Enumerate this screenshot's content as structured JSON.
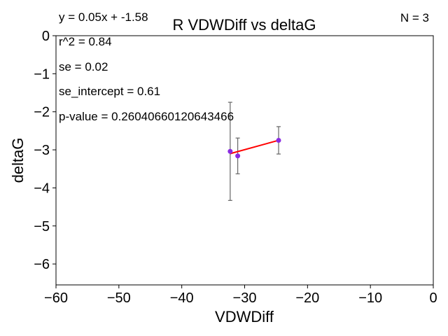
{
  "chart_data": {
    "type": "scatter",
    "title": "R VDWDiff vs deltaG",
    "xlabel": "VDWDiff",
    "ylabel": "deltaG",
    "xlim": [
      -60,
      0
    ],
    "ylim": [
      -6.55,
      0
    ],
    "xticks": [
      -60,
      -50,
      -40,
      -30,
      -20,
      -10,
      0
    ],
    "yticks": [
      0,
      -1,
      -2,
      -3,
      -4,
      -5,
      -6
    ],
    "xtick_labels": [
      "−60",
      "−50",
      "−40",
      "−30",
      "−20",
      "−10",
      "0"
    ],
    "ytick_labels": [
      "0",
      "−1",
      "−2",
      "−3",
      "−4",
      "−5",
      "−6"
    ],
    "grid": false,
    "points": [
      {
        "x": -32.3,
        "y": -3.04,
        "err": 1.29
      },
      {
        "x": -31.1,
        "y": -3.16,
        "err": 0.47
      },
      {
        "x": -24.6,
        "y": -2.75,
        "err": 0.36
      }
    ],
    "fit_line": {
      "x": [
        -32.3,
        -24.6
      ],
      "y": [
        -3.1,
        -2.75
      ]
    },
    "colors": {
      "points": "#8a2be2",
      "fit": "#ff0000",
      "errorbar": "#666666"
    },
    "annotations": {
      "equation": "y = 0.05x + -1.58",
      "r2": "r^2 = 0.84",
      "se": "se = 0.02",
      "se_intercept": "se_intercept = 0.61",
      "p_value": "p-value = 0.26040660120643466",
      "n": "N = 3"
    }
  }
}
